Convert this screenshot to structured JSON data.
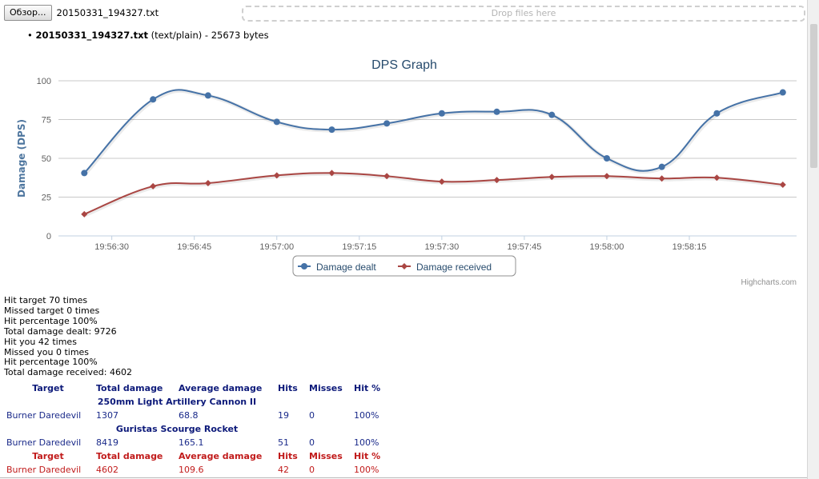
{
  "upload": {
    "browse_label": "Обзор...",
    "selected_file": "20150331_194327.txt",
    "drop_placeholder": "Drop files here"
  },
  "file_info": {
    "name": "20150331_194327.txt",
    "details": "(text/plain) - 25673 bytes"
  },
  "chart_data": {
    "type": "line",
    "title": "DPS Graph",
    "xlabel": "",
    "ylabel": "Damage (DPS)",
    "ylim": [
      0,
      100
    ],
    "yticks": [
      "0",
      "25",
      "50",
      "75",
      "100"
    ],
    "xticks": [
      "19:56:30",
      "19:56:45",
      "19:57:00",
      "19:57:15",
      "19:57:30",
      "19:57:45",
      "19:58:00",
      "19:58:15"
    ],
    "xtick_seconds": [
      30,
      45,
      60,
      75,
      90,
      105,
      120,
      135
    ],
    "x_seconds": [
      25,
      37.5,
      47.5,
      60,
      70,
      80,
      90,
      100,
      110,
      120,
      130,
      140,
      152
    ],
    "series": [
      {
        "name": "Damage dealt",
        "color": "#4572a7",
        "marker": "circle",
        "values": [
          40.5,
          88,
          90.5,
          73.5,
          68.5,
          72.5,
          79,
          80,
          78,
          50,
          44.5,
          79,
          92.5
        ]
      },
      {
        "name": "Damage received",
        "color": "#aa4643",
        "marker": "diamond",
        "values": [
          14,
          32,
          34,
          39,
          40.5,
          38.5,
          35,
          36,
          38,
          38.5,
          37,
          37.5,
          33
        ]
      }
    ],
    "legend": "bottom-center",
    "grid": true,
    "credits": "Highcharts.com"
  },
  "stats": [
    "Hit target 70 times",
    "Missed target 0 times",
    "Hit percentage 100%",
    "Total damage dealt: 9726",
    "Hit you 42 times",
    "Missed you 0 times",
    "Hit percentage 100%",
    "Total damage received: 4602"
  ],
  "dealt_table": {
    "headers": [
      "Target",
      "Total damage",
      "Average damage",
      "Hits",
      "Misses",
      "Hit %"
    ],
    "groups": [
      {
        "weapon": "250mm Light Artillery Cannon II",
        "rows": [
          [
            "Burner Daredevil",
            "1307",
            "68.8",
            "19",
            "0",
            "100%"
          ]
        ]
      },
      {
        "weapon": "Guristas Scourge Rocket",
        "rows": [
          [
            "Burner Daredevil",
            "8419",
            "165.1",
            "51",
            "0",
            "100%"
          ]
        ]
      }
    ]
  },
  "received_table": {
    "headers": [
      "Target",
      "Total damage",
      "Average damage",
      "Hits",
      "Misses",
      "Hit %"
    ],
    "rows": [
      [
        "Burner Daredevil",
        "4602",
        "109.6",
        "42",
        "0",
        "100%"
      ]
    ]
  }
}
